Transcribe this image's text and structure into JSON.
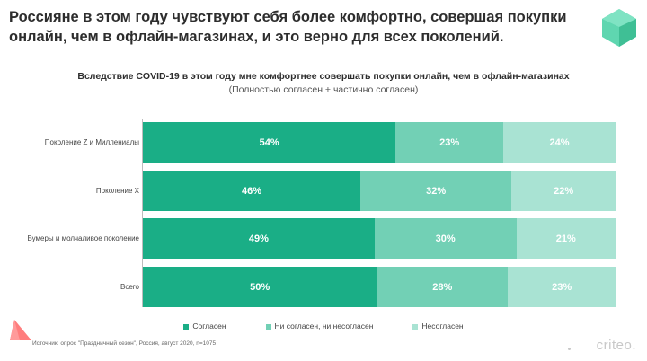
{
  "headline": "Россияне в этом году чувствуют себя более комфортно, совершая покупки онлайн, чем в офлайн-магазинах, и это верно для всех поколений.",
  "chart_data": {
    "type": "bar",
    "orientation": "horizontal",
    "stacked": true,
    "title": "Вследствие COVID-19 в этом году мне комфортнее совершать покупки онлайн, чем в офлайн-магазинах",
    "subtitle": "(Полностью согласен + частично согласен)",
    "categories": [
      "Поколение Z и Миллениалы",
      "Поколение X",
      "Бумеры и молчаливое поколение",
      "Всего"
    ],
    "series": [
      {
        "name": "Согласен",
        "color": "#1aae86",
        "values": [
          54,
          46,
          49,
          50
        ]
      },
      {
        "name": "Ни согласен, ни несогласен",
        "color": "#72d0b5",
        "values": [
          23,
          32,
          30,
          28
        ]
      },
      {
        "name": "Несогласен",
        "color": "#a9e3d3",
        "values": [
          24,
          22,
          21,
          23
        ]
      }
    ],
    "value_suffix": "%",
    "legend_position": "bottom",
    "grid": false
  },
  "legend": [
    {
      "label": "Согласен",
      "color": "#1aae86"
    },
    {
      "label": "Ни согласен, ни несогласен",
      "color": "#72d0b5"
    },
    {
      "label": "Несогласен",
      "color": "#a9e3d3"
    }
  ],
  "source": "Источник: опрос \"Праздничный сезон\", Россия, август 2020, n=1075",
  "brand": "criteo.",
  "colors": {
    "logo_hex": "#5fd6b0",
    "triangle": "#ff6f6f",
    "brand": "#c8c8c8"
  }
}
